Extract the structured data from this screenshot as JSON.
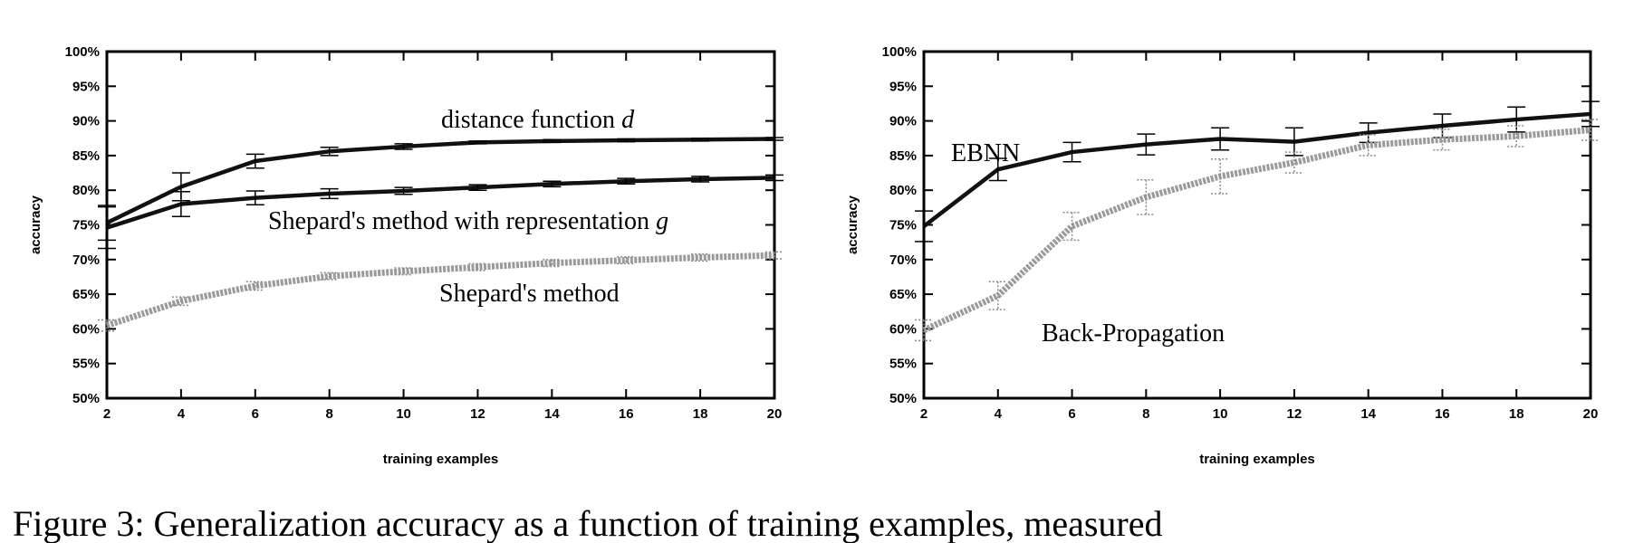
{
  "caption": "Figure 3:  Generalization accuracy as a function of training examples, measured",
  "chart_data": [
    {
      "type": "line",
      "xlabel": "training examples",
      "ylabel": "accuracy",
      "xlim": [
        2,
        20
      ],
      "ylim": [
        50,
        100
      ],
      "x_ticks": [
        "2",
        "4",
        "6",
        "8",
        "10",
        "12",
        "14",
        "16",
        "18",
        "20"
      ],
      "y_ticks": [
        "50%",
        "55%",
        "60%",
        "65%",
        "70%",
        "75%",
        "80%",
        "85%",
        "90%",
        "95%",
        "100%"
      ],
      "grid": false,
      "series": [
        {
          "name": "distance function d",
          "label_main": "distance function ",
          "label_var": "d",
          "color": "#111111",
          "x": [
            2,
            4,
            6,
            8,
            10,
            12,
            14,
            16,
            18,
            20
          ],
          "values": [
            75.3,
            80.5,
            84.2,
            85.6,
            86.3,
            86.9,
            87.1,
            87.2,
            87.3,
            87.4
          ],
          "err": [
            2.5,
            2.0,
            1.0,
            0.6,
            0.4,
            0.2,
            0.2,
            0.2,
            0.2,
            0.2
          ]
        },
        {
          "name": "Shepard's method with representation g",
          "label_main": "Shepard's method with representation ",
          "label_var": "g",
          "color": "#111111",
          "x": [
            2,
            4,
            6,
            8,
            10,
            12,
            14,
            16,
            18,
            20
          ],
          "values": [
            74.6,
            78.0,
            78.9,
            79.5,
            79.9,
            80.4,
            80.9,
            81.3,
            81.6,
            81.8
          ],
          "err": [
            3.0,
            1.8,
            1.0,
            0.7,
            0.5,
            0.4,
            0.4,
            0.4,
            0.4,
            0.4
          ]
        },
        {
          "name": "Shepard's method",
          "label_main": "Shepard's method",
          "label_var": "",
          "color": "#9a9a9a",
          "x": [
            2,
            4,
            6,
            8,
            10,
            12,
            14,
            16,
            18,
            20
          ],
          "values": [
            60.5,
            64.0,
            66.2,
            67.6,
            68.3,
            68.9,
            69.5,
            69.9,
            70.3,
            70.6
          ],
          "err": [
            0.8,
            0.6,
            0.6,
            0.5,
            0.5,
            0.5,
            0.5,
            0.5,
            0.5,
            0.5
          ]
        }
      ]
    },
    {
      "type": "line",
      "xlabel": "training examples",
      "ylabel": "accuracy",
      "xlim": [
        2,
        20
      ],
      "ylim": [
        50,
        100
      ],
      "x_ticks": [
        "2",
        "4",
        "6",
        "8",
        "10",
        "12",
        "14",
        "16",
        "18",
        "20"
      ],
      "y_ticks": [
        "50%",
        "55%",
        "60%",
        "65%",
        "70%",
        "75%",
        "80%",
        "85%",
        "90%",
        "95%",
        "100%"
      ],
      "grid": false,
      "series": [
        {
          "name": "EBNN",
          "label_main": "EBNN",
          "label_var": "",
          "color": "#111111",
          "x": [
            2,
            4,
            6,
            8,
            10,
            12,
            14,
            16,
            18,
            20
          ],
          "values": [
            74.8,
            83.0,
            85.5,
            86.6,
            87.4,
            87.0,
            88.3,
            89.3,
            90.2,
            91.0
          ],
          "err": [
            2.2,
            1.6,
            1.4,
            1.5,
            1.6,
            2.0,
            1.4,
            1.7,
            1.8,
            1.8
          ]
        },
        {
          "name": "Back-Propagation",
          "label_main": "Back-Propagation",
          "label_var": "",
          "color": "#9a9a9a",
          "x": [
            2,
            4,
            6,
            8,
            10,
            12,
            14,
            16,
            18,
            20
          ],
          "values": [
            59.8,
            64.8,
            74.8,
            79.0,
            82.0,
            84.0,
            86.5,
            87.3,
            87.8,
            88.7
          ],
          "err": [
            1.5,
            2.0,
            2.0,
            2.5,
            2.5,
            1.5,
            1.5,
            1.5,
            1.5,
            1.5
          ]
        }
      ]
    }
  ]
}
